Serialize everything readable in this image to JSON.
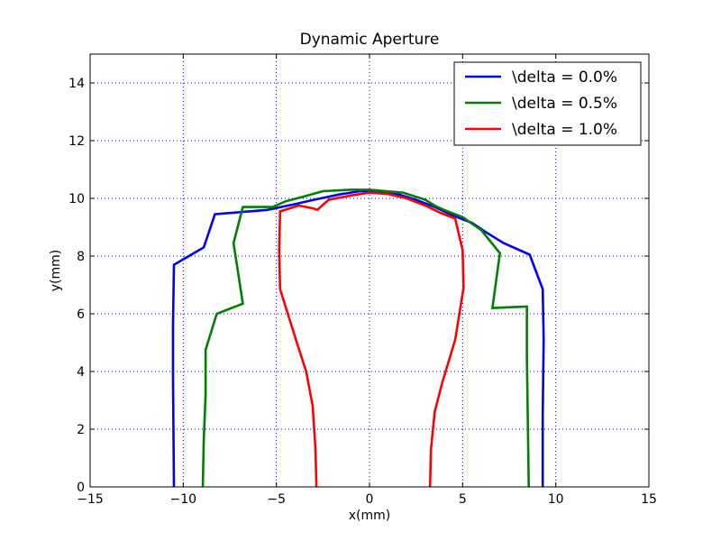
{
  "chart_data": {
    "type": "line",
    "title": "Dynamic Aperture",
    "xlabel": "x(mm)",
    "ylabel": "y(mm)",
    "xlim": [
      -15,
      15
    ],
    "ylim": [
      0,
      15
    ],
    "xticks": [
      -15,
      -10,
      -5,
      0,
      5,
      10,
      15
    ],
    "yticks": [
      0,
      2,
      4,
      6,
      8,
      10,
      12,
      14
    ],
    "xtick_labels": [
      "−15",
      "−10",
      "−5",
      "0",
      "5",
      "10",
      "15"
    ],
    "ytick_labels": [
      "0",
      "2",
      "4",
      "6",
      "8",
      "10",
      "12",
      "14"
    ],
    "grid": true,
    "legend_position": "top-right",
    "series": [
      {
        "name": "\\delta = 0.0%",
        "color": "#0000ff",
        "x": [
          -10.5,
          -10.55,
          -10.55,
          -10.5,
          -8.9,
          -8.3,
          -5.5,
          -4.0,
          -3.0,
          -1.5,
          -0.5,
          0.5,
          1.5,
          2.5,
          3.5,
          4.5,
          5.5,
          6.2,
          7.2,
          8.6,
          9.3,
          9.35,
          9.3,
          9.3
        ],
        "y": [
          0,
          3.8,
          5.6,
          7.7,
          8.3,
          9.45,
          9.6,
          9.8,
          9.95,
          10.15,
          10.25,
          10.25,
          10.15,
          9.95,
          9.7,
          9.4,
          9.15,
          8.85,
          8.45,
          8.05,
          6.85,
          5.1,
          2.5,
          0
        ]
      },
      {
        "name": "\\delta = 0.5%",
        "color": "#008000",
        "x": [
          -8.95,
          -8.9,
          -8.8,
          -8.8,
          -8.2,
          -6.8,
          -7.3,
          -6.8,
          -5.2,
          -4.5,
          -3.6,
          -2.5,
          -1.0,
          0.0,
          1.8,
          3.0,
          3.5,
          4.0,
          5.0,
          6.0,
          7.0,
          6.6,
          8.45,
          8.45,
          8.55
        ],
        "y": [
          0,
          1.6,
          3.2,
          4.75,
          6.0,
          6.35,
          8.45,
          9.7,
          9.7,
          9.9,
          10.05,
          10.25,
          10.3,
          10.3,
          10.2,
          9.95,
          9.75,
          9.6,
          9.35,
          8.9,
          8.1,
          6.2,
          6.25,
          4.5,
          0
        ]
      },
      {
        "name": "\\delta = 1.0%",
        "color": "#ff0000",
        "x": [
          -2.85,
          -2.9,
          -3.05,
          -3.4,
          -3.9,
          -4.8,
          -4.85,
          -4.8,
          -3.8,
          -3.0,
          -2.8,
          -2.2,
          -1.0,
          0.0,
          1.0,
          2.0,
          3.0,
          3.8,
          4.6,
          5.0,
          5.05,
          4.6,
          3.9,
          3.5,
          3.3,
          3.25
        ],
        "y": [
          0,
          1.3,
          2.8,
          4.0,
          5.0,
          6.85,
          8.2,
          9.55,
          9.75,
          9.65,
          9.6,
          9.95,
          10.1,
          10.2,
          10.15,
          10.0,
          9.75,
          9.5,
          9.3,
          8.2,
          6.9,
          5.1,
          3.6,
          2.6,
          1.3,
          0
        ]
      }
    ]
  }
}
